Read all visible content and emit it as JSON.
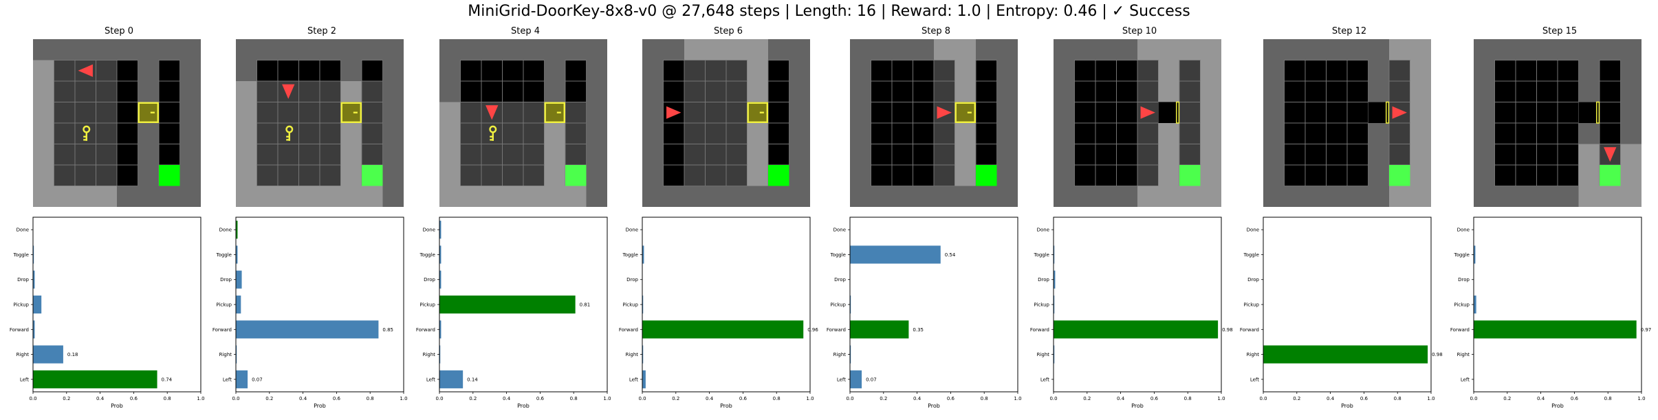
{
  "title": "MiniGrid-DoorKey-8x8-v0 @ 27,648 steps | Length: 16 | Reward: 1.0 | Entropy: 0.46 | ✓ Success",
  "colors": {
    "wall": "#646464",
    "floor": "#000000",
    "visible_floor": "#3c3c3c",
    "visible_wall": "#969696",
    "goal": "#00ff00",
    "agent": "#ff4545",
    "key": "#f0f040",
    "door": "#f0f040",
    "bar_default": "#4682b4",
    "bar_chosen": "#008000"
  },
  "actions": [
    "Left",
    "Right",
    "Forward",
    "Pickup",
    "Drop",
    "Toggle",
    "Done"
  ],
  "xaxis": {
    "label": "Prob",
    "ticks": [
      "0.0",
      "0.2",
      "0.4",
      "0.6",
      "0.8",
      "1.0"
    ]
  },
  "chart_data": [
    {
      "type": "bar",
      "orientation": "horizontal",
      "title": "Step 0",
      "xlabel": "Prob",
      "xlim": [
        0,
        1
      ],
      "categories": [
        "Left",
        "Right",
        "Forward",
        "Pickup",
        "Drop",
        "Toggle",
        "Done"
      ],
      "values": [
        0.74,
        0.18,
        0.01,
        0.05,
        0.01,
        0.005,
        0.0
      ],
      "chosen": "Left",
      "labels": {
        "Left": "0.74",
        "Right": "0.18"
      }
    },
    {
      "type": "bar",
      "orientation": "horizontal",
      "title": "Step 2",
      "xlabel": "Prob",
      "xlim": [
        0,
        1
      ],
      "categories": [
        "Left",
        "Right",
        "Forward",
        "Pickup",
        "Drop",
        "Toggle",
        "Done"
      ],
      "values": [
        0.07,
        0.005,
        0.85,
        0.03,
        0.035,
        0.01,
        0.01
      ],
      "chosen": "Done",
      "labels": {
        "Left": "0.07",
        "Forward": "0.85"
      }
    },
    {
      "type": "bar",
      "orientation": "horizontal",
      "title": "Step 4",
      "xlabel": "Prob",
      "xlim": [
        0,
        1
      ],
      "categories": [
        "Left",
        "Right",
        "Forward",
        "Pickup",
        "Drop",
        "Toggle",
        "Done"
      ],
      "values": [
        0.14,
        0.005,
        0.01,
        0.81,
        0.01,
        0.01,
        0.01
      ],
      "chosen": "Pickup",
      "labels": {
        "Left": "0.14",
        "Pickup": "0.81"
      }
    },
    {
      "type": "bar",
      "orientation": "horizontal",
      "title": "Step 6",
      "xlabel": "Prob",
      "xlim": [
        0,
        1
      ],
      "categories": [
        "Left",
        "Right",
        "Forward",
        "Pickup",
        "Drop",
        "Toggle",
        "Done"
      ],
      "values": [
        0.02,
        0.005,
        0.96,
        0.005,
        0.0,
        0.01,
        0.0
      ],
      "chosen": "Forward",
      "labels": {
        "Forward": "0.96"
      }
    },
    {
      "type": "bar",
      "orientation": "horizontal",
      "title": "Step 8",
      "xlabel": "Prob",
      "xlim": [
        0,
        1
      ],
      "categories": [
        "Left",
        "Right",
        "Forward",
        "Pickup",
        "Drop",
        "Toggle",
        "Done"
      ],
      "values": [
        0.07,
        0.005,
        0.35,
        0.005,
        0.0,
        0.54,
        0.0
      ],
      "chosen": "Forward",
      "labels": {
        "Left": "0.07",
        "Forward": "0.35",
        "Toggle": "0.54"
      }
    },
    {
      "type": "bar",
      "orientation": "horizontal",
      "title": "Step 10",
      "xlabel": "Prob",
      "xlim": [
        0,
        1
      ],
      "categories": [
        "Left",
        "Right",
        "Forward",
        "Pickup",
        "Drop",
        "Toggle",
        "Done"
      ],
      "values": [
        0.0,
        0.005,
        0.98,
        0.005,
        0.01,
        0.005,
        0.0
      ],
      "chosen": "Forward",
      "labels": {
        "Forward": "0.98"
      }
    },
    {
      "type": "bar",
      "orientation": "horizontal",
      "title": "Step 12",
      "xlabel": "Prob",
      "xlim": [
        0,
        1
      ],
      "categories": [
        "Left",
        "Right",
        "Forward",
        "Pickup",
        "Drop",
        "Toggle",
        "Done"
      ],
      "values": [
        0.0,
        0.98,
        0.0,
        0.0,
        0.0,
        0.0,
        0.0
      ],
      "chosen": "Right",
      "labels": {
        "Right": "0.98"
      }
    },
    {
      "type": "bar",
      "orientation": "horizontal",
      "title": "Step 15",
      "xlabel": "Prob",
      "xlim": [
        0,
        1
      ],
      "categories": [
        "Left",
        "Right",
        "Forward",
        "Pickup",
        "Drop",
        "Toggle",
        "Done"
      ],
      "values": [
        0.0,
        0.0,
        0.97,
        0.015,
        0.0,
        0.01,
        0.0
      ],
      "chosen": "Forward",
      "labels": {
        "Forward": "0.97"
      }
    }
  ],
  "grids": [
    {
      "step": "Step 0",
      "agent": [
        2,
        1,
        "left"
      ],
      "key": [
        2,
        4
      ],
      "door": [
        5,
        3,
        "closed"
      ],
      "goal": [
        6,
        6
      ],
      "view": [
        0,
        1,
        3,
        7
      ]
    },
    {
      "step": "Step 2",
      "agent": [
        2,
        2,
        "down"
      ],
      "key": [
        2,
        4
      ],
      "door": [
        5,
        3,
        "closed"
      ],
      "goal": [
        6,
        6
      ],
      "view": [
        0,
        2,
        6,
        8
      ]
    },
    {
      "step": "Step 4",
      "agent": [
        2,
        3,
        "down"
      ],
      "key": [
        2,
        4
      ],
      "door": [
        5,
        3,
        "closed"
      ],
      "goal": [
        6,
        6
      ],
      "view": [
        0,
        3,
        6,
        8
      ]
    },
    {
      "step": "Step 6",
      "agent": [
        1,
        3,
        "right"
      ],
      "key": null,
      "door": [
        5,
        3,
        "closed"
      ],
      "goal": [
        6,
        6
      ],
      "view": [
        2,
        0,
        5,
        6
      ]
    },
    {
      "step": "Step 8",
      "agent": [
        4,
        3,
        "right"
      ],
      "key": null,
      "door": [
        5,
        3,
        "closed"
      ],
      "goal": [
        6,
        6
      ],
      "view": [
        4,
        0,
        5,
        6
      ]
    },
    {
      "step": "Step 10",
      "agent": [
        4,
        3,
        "right"
      ],
      "key": null,
      "door": [
        5,
        3,
        "open"
      ],
      "goal": [
        6,
        6
      ],
      "view": [
        4,
        0,
        7,
        7
      ]
    },
    {
      "step": "Step 12",
      "agent": [
        6,
        3,
        "right"
      ],
      "key": null,
      "door": [
        5,
        3,
        "open"
      ],
      "goal": [
        6,
        6
      ],
      "view": [
        6,
        0,
        7,
        7
      ]
    },
    {
      "step": "Step 15",
      "agent": [
        6,
        5,
        "down"
      ],
      "key": null,
      "door": [
        5,
        3,
        "open"
      ],
      "goal": [
        6,
        6
      ],
      "view": [
        5,
        5,
        7,
        7
      ]
    }
  ]
}
